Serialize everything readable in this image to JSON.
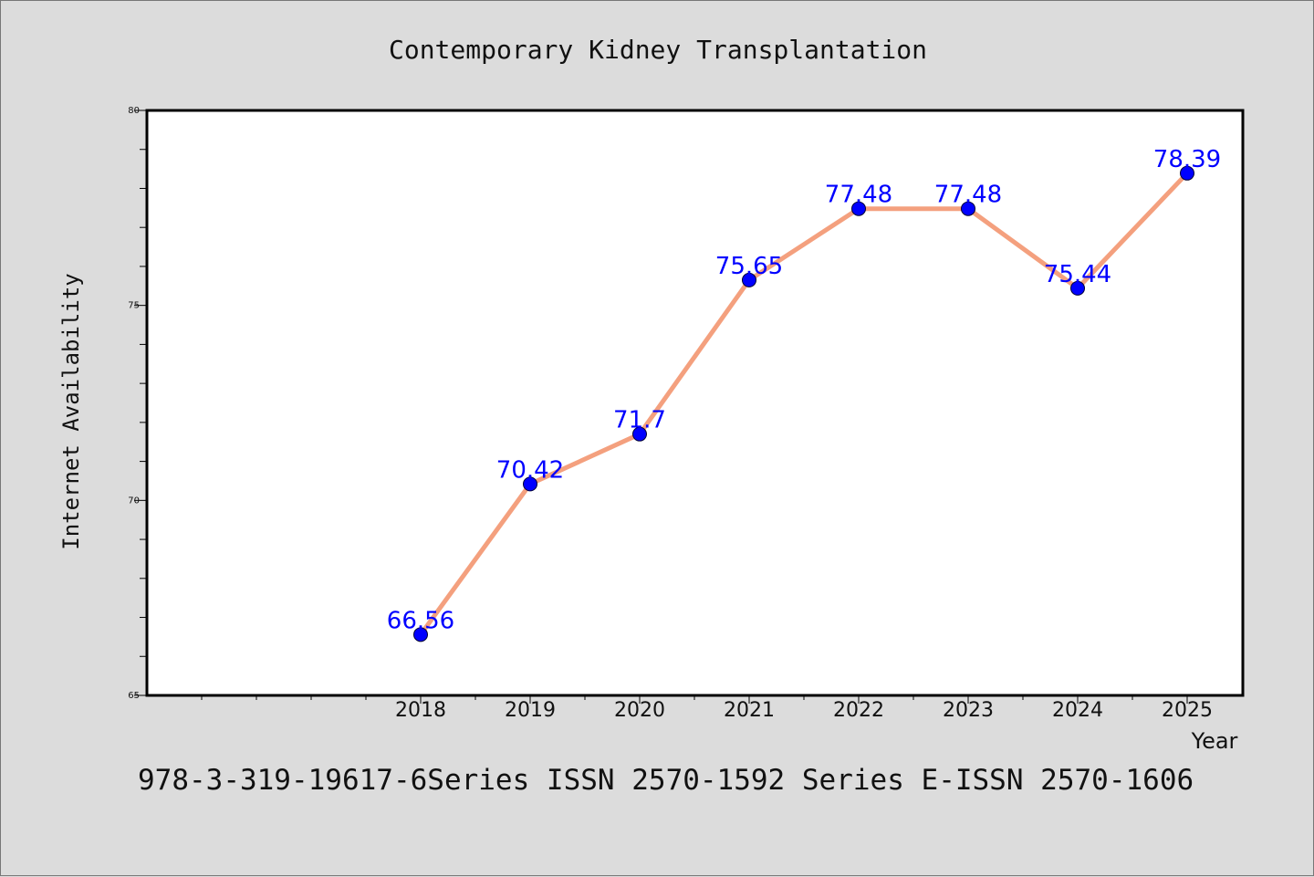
{
  "chart_data": {
    "type": "line",
    "title": "Contemporary Kidney Transplantation",
    "subtitle": "978-3-319-19617-6Series ISSN 2570-1592 Series E-ISSN 2570-1606",
    "xlabel": "Year",
    "ylabel": "Internet Availability",
    "categories": [
      "2018",
      "2019",
      "2020",
      "2021",
      "2022",
      "2023",
      "2024",
      "2025"
    ],
    "values": [
      66.56,
      70.42,
      71.7,
      75.65,
      77.48,
      77.48,
      75.44,
      78.39
    ],
    "data_labels": [
      "66.56",
      "70.42",
      "71.7",
      "75.65",
      "77.48",
      "77.48",
      "75.44",
      "78.39"
    ],
    "ylim": [
      65,
      80
    ],
    "yticks": [
      "65",
      "70",
      "75",
      "80"
    ],
    "grid": false,
    "colors": {
      "line": "#f4a07e",
      "marker": "#0000ff",
      "data_label": "#0000ff",
      "plot_background": "#ffffff",
      "page_background": "#dcdcdc"
    }
  }
}
